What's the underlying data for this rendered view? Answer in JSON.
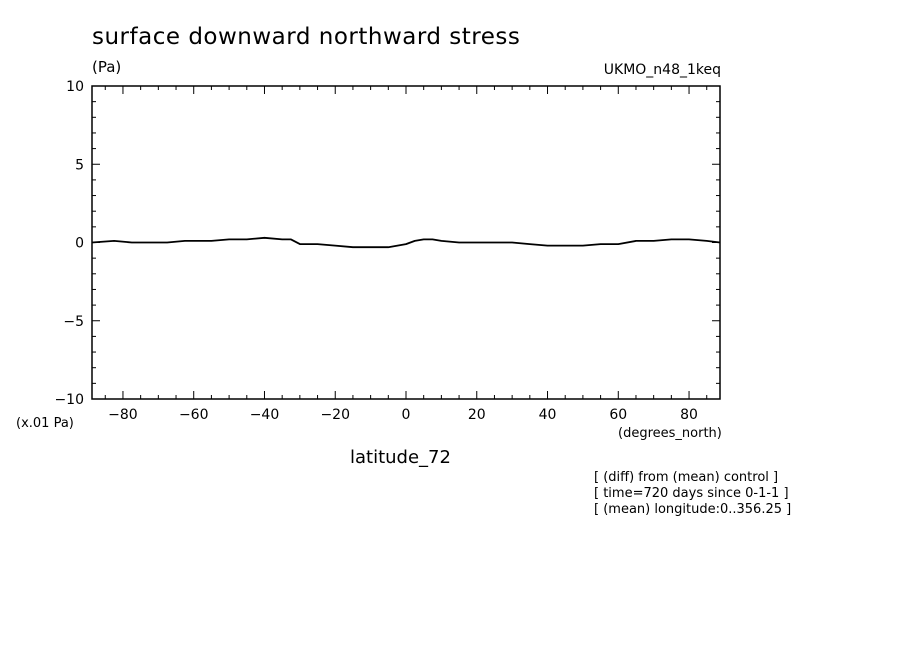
{
  "chart_data": {
    "type": "line",
    "title": "surface downward northward stress",
    "yunits": "(Pa)",
    "model": "UKMO_n48_1keq",
    "yscale_note": "(x.01 Pa)",
    "xlabel": "latitude_72",
    "xunits": "(degrees_north)",
    "xlim": [
      -88.75,
      88.75
    ],
    "ylim": [
      -10,
      10
    ],
    "xticks": [
      -80,
      -60,
      -40,
      -20,
      0,
      20,
      40,
      60,
      80
    ],
    "xtick_labels": [
      "−80",
      "−60",
      "−40",
      "−20",
      "0",
      "20",
      "40",
      "60",
      "80"
    ],
    "yticks": [
      -10,
      -5,
      0,
      5,
      10
    ],
    "ytick_labels": [
      "−10",
      "−5",
      "0",
      "5",
      "10"
    ],
    "grid": false,
    "series": [
      {
        "color": "#000000",
        "x": [
          -88.75,
          -82.5,
          -77.5,
          -67.5,
          -62.5,
          -55,
          -50,
          -45,
          -40,
          -35,
          -32.5,
          -30,
          -25,
          -20,
          -15,
          -10,
          -5,
          0,
          2.5,
          5,
          7.5,
          10,
          15,
          20,
          30,
          35,
          40,
          45,
          50,
          55,
          60,
          65,
          70,
          75,
          80,
          85,
          88.75
        ],
        "y": [
          0.0,
          0.1,
          0.0,
          0.0,
          0.1,
          0.1,
          0.2,
          0.2,
          0.3,
          0.2,
          0.2,
          -0.1,
          -0.1,
          -0.2,
          -0.3,
          -0.3,
          -0.3,
          -0.1,
          0.1,
          0.2,
          0.2,
          0.1,
          0.0,
          0.0,
          0.0,
          -0.1,
          -0.2,
          -0.2,
          -0.2,
          -0.1,
          -0.1,
          0.1,
          0.1,
          0.2,
          0.2,
          0.1,
          0.0
        ]
      }
    ]
  },
  "notes": [
    "[ (diff) from (mean) control ]",
    "[ time=720 days since 0-1-1 ]",
    "[ (mean) longitude:0..356.25 ]"
  ]
}
